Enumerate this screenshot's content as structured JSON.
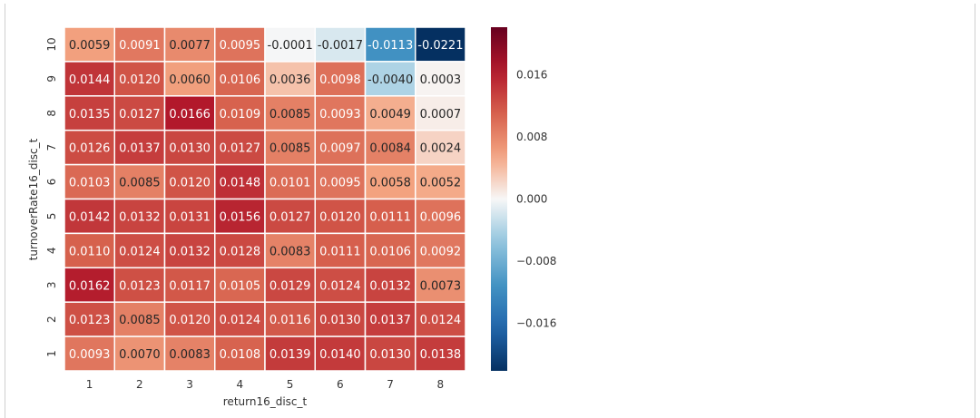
{
  "chart_data": {
    "type": "heatmap",
    "xlabel": "return16_disc_t",
    "ylabel": "turnoverRate16_disc_t",
    "x_categories": [
      "1",
      "2",
      "3",
      "4",
      "5",
      "6",
      "7",
      "8"
    ],
    "y_categories": [
      "10",
      "9",
      "8",
      "7",
      "6",
      "5",
      "4",
      "3",
      "2",
      "1"
    ],
    "values": [
      [
        0.0059,
        0.0091,
        0.0077,
        0.0095,
        -0.0001,
        -0.0017,
        -0.0113,
        -0.0221
      ],
      [
        0.0144,
        0.012,
        0.006,
        0.0106,
        0.0036,
        0.0098,
        -0.004,
        0.0003
      ],
      [
        0.0135,
        0.0127,
        0.0166,
        0.0109,
        0.0085,
        0.0093,
        0.0049,
        0.0007
      ],
      [
        0.0126,
        0.0137,
        0.013,
        0.0127,
        0.0085,
        0.0097,
        0.0084,
        0.0024
      ],
      [
        0.0103,
        0.0085,
        0.012,
        0.0148,
        0.0101,
        0.0095,
        0.0058,
        0.0052
      ],
      [
        0.0142,
        0.0132,
        0.0131,
        0.0156,
        0.0127,
        0.012,
        0.0111,
        0.0096
      ],
      [
        0.011,
        0.0124,
        0.0132,
        0.0128,
        0.0083,
        0.0111,
        0.0106,
        0.0092
      ],
      [
        0.0162,
        0.0123,
        0.0117,
        0.0105,
        0.0129,
        0.0124,
        0.0132,
        0.0073
      ],
      [
        0.0123,
        0.0085,
        0.012,
        0.0124,
        0.0116,
        0.013,
        0.0137,
        0.0124
      ],
      [
        0.0093,
        0.007,
        0.0083,
        0.0108,
        0.0139,
        0.014,
        0.013,
        0.0138
      ]
    ],
    "colorbar": {
      "min": -0.0221,
      "max": 0.0221,
      "ticks": [
        0.016,
        0.008,
        0.0,
        -0.008,
        -0.016
      ],
      "tick_labels": [
        "0.016",
        "0.008",
        "0.000",
        "−0.008",
        "−0.016"
      ],
      "colormap": "RdBu_r"
    },
    "grid": false,
    "cell_border_color": "#ffffff"
  }
}
